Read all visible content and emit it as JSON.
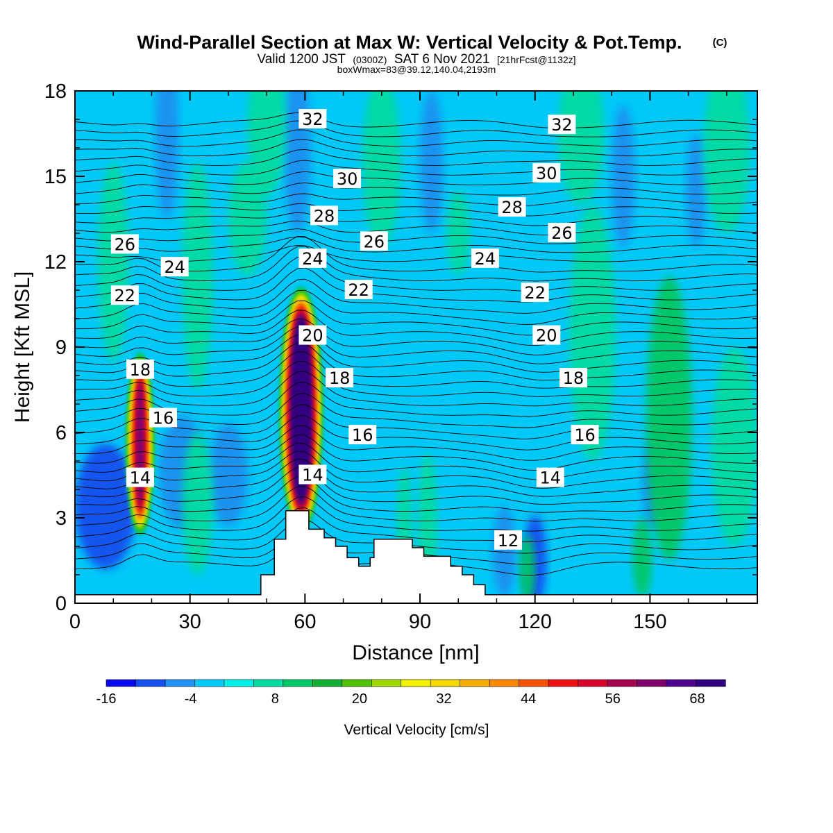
{
  "header": {
    "title": "Wind-Parallel Section at Max W: Vertical Velocity & Pot.Temp.",
    "copyright": "(C)",
    "valid_prefix": "Valid 1200 JST",
    "valid_utc": "(0300Z)",
    "valid_suffix": "SAT 6 Nov 2021",
    "forecast_info": "[21hrFcst@1132z]",
    "box_info": "boxWmax=83@39.12,140.04,2193m"
  },
  "chart_data": {
    "type": "heatmap",
    "xlabel": "Distance [nm]",
    "ylabel": "Height [Kft MSL]",
    "xlim": [
      0,
      178
    ],
    "ylim": [
      0,
      18
    ],
    "x_ticks": [
      0,
      30,
      60,
      90,
      120,
      150
    ],
    "y_ticks": [
      0,
      3,
      6,
      9,
      12,
      15,
      18
    ],
    "colorbar": {
      "title": "Vertical Velocity [cm/s]",
      "min": -16,
      "max": 72,
      "step": 4,
      "tick_values": [
        -16,
        -4,
        8,
        20,
        32,
        44,
        56,
        68
      ],
      "colors": [
        "#0a0af0",
        "#1450f0",
        "#1e90f0",
        "#00c8f8",
        "#00f0e8",
        "#00dca0",
        "#00c864",
        "#10b030",
        "#50c000",
        "#a0d800",
        "#f0f000",
        "#f8d800",
        "#f8b000",
        "#f88800",
        "#f85000",
        "#f01010",
        "#d80028",
        "#a80050",
        "#800070",
        "#500090",
        "#300080"
      ]
    },
    "theta_contours": [
      {
        "label": "12",
        "x": 113,
        "y": 2.2
      },
      {
        "label": "14",
        "x": 17,
        "y": 4.4
      },
      {
        "label": "14",
        "x": 62,
        "y": 4.5
      },
      {
        "label": "14",
        "x": 124,
        "y": 4.4
      },
      {
        "label": "16",
        "x": 23,
        "y": 6.5
      },
      {
        "label": "16",
        "x": 75,
        "y": 5.9
      },
      {
        "label": "16",
        "x": 133,
        "y": 5.9
      },
      {
        "label": "18",
        "x": 17,
        "y": 8.2
      },
      {
        "label": "18",
        "x": 69,
        "y": 7.9
      },
      {
        "label": "18",
        "x": 130,
        "y": 7.9
      },
      {
        "label": "20",
        "x": 62,
        "y": 9.4
      },
      {
        "label": "20",
        "x": 123,
        "y": 9.4
      },
      {
        "label": "22",
        "x": 13,
        "y": 10.8
      },
      {
        "label": "22",
        "x": 74,
        "y": 11.0
      },
      {
        "label": "22",
        "x": 120,
        "y": 10.9
      },
      {
        "label": "24",
        "x": 26,
        "y": 11.8
      },
      {
        "label": "24",
        "x": 62,
        "y": 12.1
      },
      {
        "label": "24",
        "x": 107,
        "y": 12.1
      },
      {
        "label": "26",
        "x": 13,
        "y": 12.6
      },
      {
        "label": "26",
        "x": 78,
        "y": 12.7
      },
      {
        "label": "26",
        "x": 127,
        "y": 13.0
      },
      {
        "label": "28",
        "x": 65,
        "y": 13.6
      },
      {
        "label": "28",
        "x": 114,
        "y": 13.9
      },
      {
        "label": "30",
        "x": 71,
        "y": 14.9
      },
      {
        "label": "30",
        "x": 123,
        "y": 15.1
      },
      {
        "label": "32",
        "x": 62,
        "y": 17.0
      },
      {
        "label": "32",
        "x": 127,
        "y": 16.8
      }
    ],
    "terrain": [
      [
        0,
        0.3
      ],
      [
        48.5,
        0.3
      ],
      [
        48.5,
        1.0
      ],
      [
        52,
        1.0
      ],
      [
        52,
        2.25
      ],
      [
        55,
        2.25
      ],
      [
        55,
        3.25
      ],
      [
        61,
        3.25
      ],
      [
        61,
        2.6
      ],
      [
        65,
        2.6
      ],
      [
        65,
        2.3
      ],
      [
        68,
        2.3
      ],
      [
        68,
        2.0
      ],
      [
        71,
        2.0
      ],
      [
        71,
        1.6
      ],
      [
        74,
        1.6
      ],
      [
        74,
        1.3
      ],
      [
        77,
        1.3
      ],
      [
        77,
        1.6
      ],
      [
        78,
        1.6
      ],
      [
        78,
        2.25
      ],
      [
        88,
        2.25
      ],
      [
        88,
        1.95
      ],
      [
        91,
        1.95
      ],
      [
        91,
        1.65
      ],
      [
        98,
        1.65
      ],
      [
        98,
        1.3
      ],
      [
        101,
        1.3
      ],
      [
        101,
        1.0
      ],
      [
        104,
        1.0
      ],
      [
        104,
        0.65
      ],
      [
        107,
        0.65
      ],
      [
        107,
        0.3
      ],
      [
        178,
        0.3
      ]
    ],
    "updrafts": [
      {
        "x": 17,
        "y_center": 5.6,
        "half_width": 4.0,
        "half_height": 3.3,
        "peak": 58
      },
      {
        "x": 59,
        "y_center": 6.8,
        "half_width": 6.0,
        "half_height": 4.4,
        "peak": 83
      }
    ]
  }
}
